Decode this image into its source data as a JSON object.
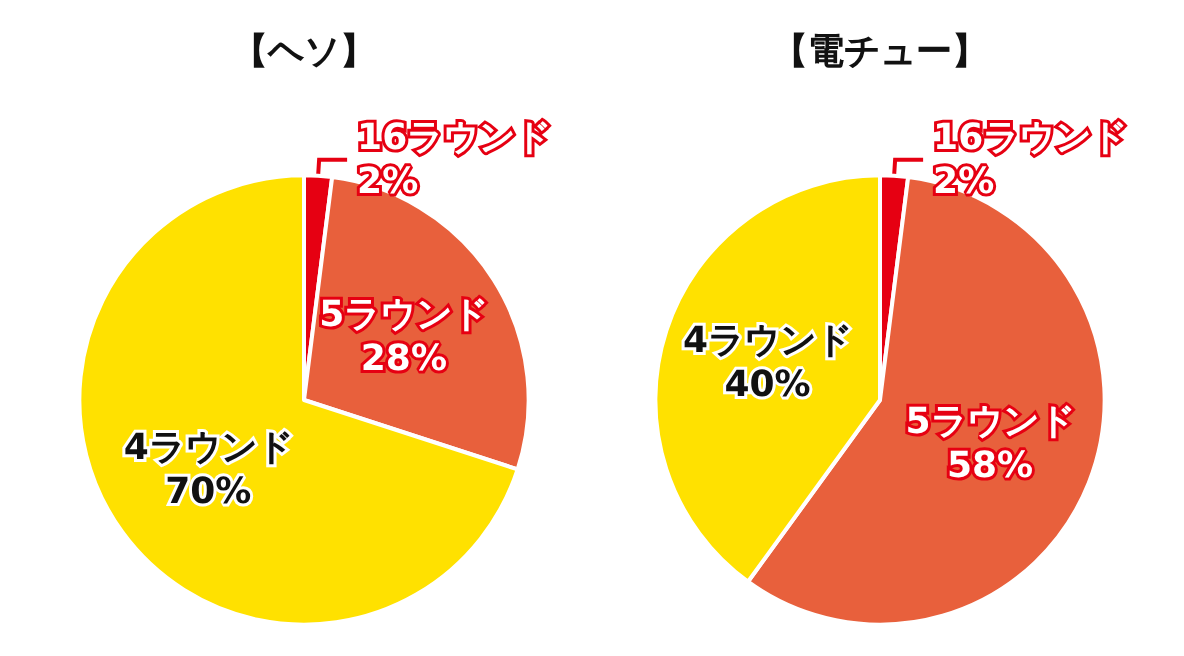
{
  "chart_data": [
    {
      "type": "pie",
      "title": "【ヘソ】",
      "categories": [
        "16ラウンド",
        "5ラウンド",
        "4ラウンド"
      ],
      "values": [
        2,
        28,
        70
      ],
      "colors": [
        "#e60012",
        "#e8603c",
        "#ffe100"
      ],
      "value_labels": [
        "2%",
        "28%",
        "70%"
      ]
    },
    {
      "type": "pie",
      "title": "【電チュー】",
      "categories": [
        "16ラウンド",
        "5ラウンド",
        "4ラウンド"
      ],
      "values": [
        2,
        58,
        40
      ],
      "colors": [
        "#e60012",
        "#e8603c",
        "#ffe100"
      ],
      "value_labels": [
        "2%",
        "58%",
        "40%"
      ]
    }
  ]
}
